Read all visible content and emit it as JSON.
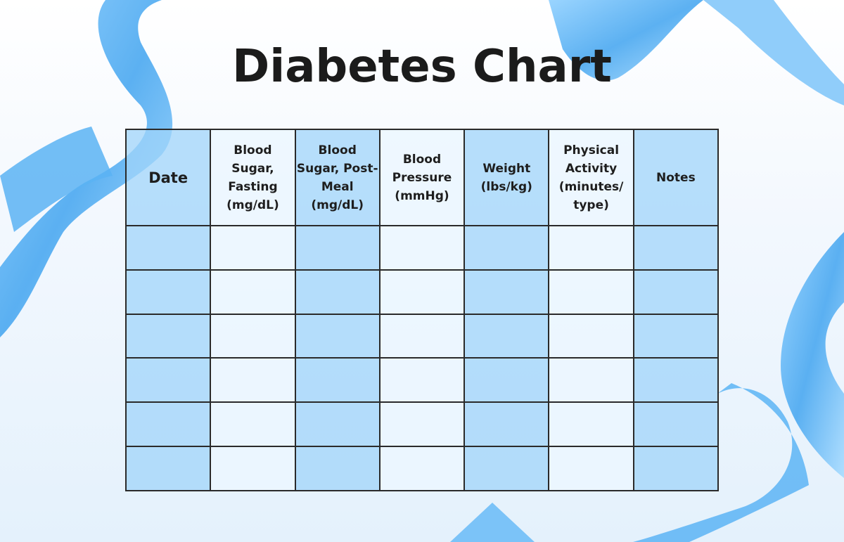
{
  "title": "Diabetes Chart",
  "table": {
    "headers": [
      "Date",
      "Blood Sugar, Fasting (mg/dL)",
      "Blood Sugar, Post-Meal (mg/dL)",
      "Blood Pressure (mmHg)",
      "Weight (lbs/kg)",
      "Physical Activity (minutes/ type)",
      "Notes"
    ],
    "rows": [
      [
        "",
        "",
        "",
        "",
        "",
        "",
        ""
      ],
      [
        "",
        "",
        "",
        "",
        "",
        "",
        ""
      ],
      [
        "",
        "",
        "",
        "",
        "",
        "",
        ""
      ],
      [
        "",
        "",
        "",
        "",
        "",
        "",
        ""
      ],
      [
        "",
        "",
        "",
        "",
        "",
        "",
        ""
      ],
      [
        "",
        "",
        "",
        "",
        "",
        "",
        ""
      ]
    ]
  },
  "colors": {
    "ribbon": "#5cb4f5",
    "column_dark": "#b6dcfb",
    "column_light": "#eaf5ff"
  }
}
